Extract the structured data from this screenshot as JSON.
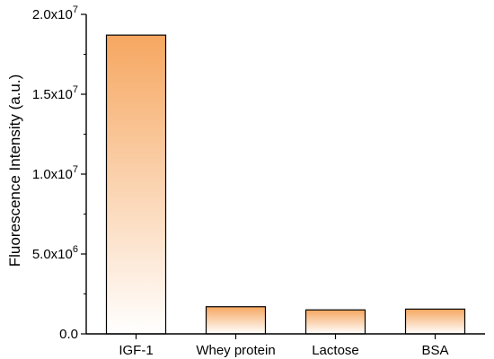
{
  "chart_data": {
    "type": "bar",
    "title": "",
    "xlabel": "",
    "ylabel": "Fluorescence Intensity (a.u.)",
    "categories": [
      "IGF-1",
      "Whey protein",
      "Lactose",
      "BSA"
    ],
    "values": [
      18700000,
      1700000,
      1500000,
      1550000
    ],
    "ylim": [
      0,
      20000000
    ],
    "yticks": [
      {
        "value": 0,
        "label": "0.0"
      },
      {
        "value": 5000000,
        "label": "5.0x10",
        "exp": "6"
      },
      {
        "value": 10000000,
        "label": "1.0x10",
        "exp": "7"
      },
      {
        "value": 15000000,
        "label": "1.5x10",
        "exp": "7"
      },
      {
        "value": 20000000,
        "label": "2.0x10",
        "exp": "7"
      }
    ],
    "minor_step": 2500000,
    "grid": false,
    "legend": "none",
    "bar_gradient": {
      "top": "#f6a760",
      "bottom": "#ffffff"
    },
    "bar_edge": "#000000",
    "axis_color": "#000000"
  }
}
